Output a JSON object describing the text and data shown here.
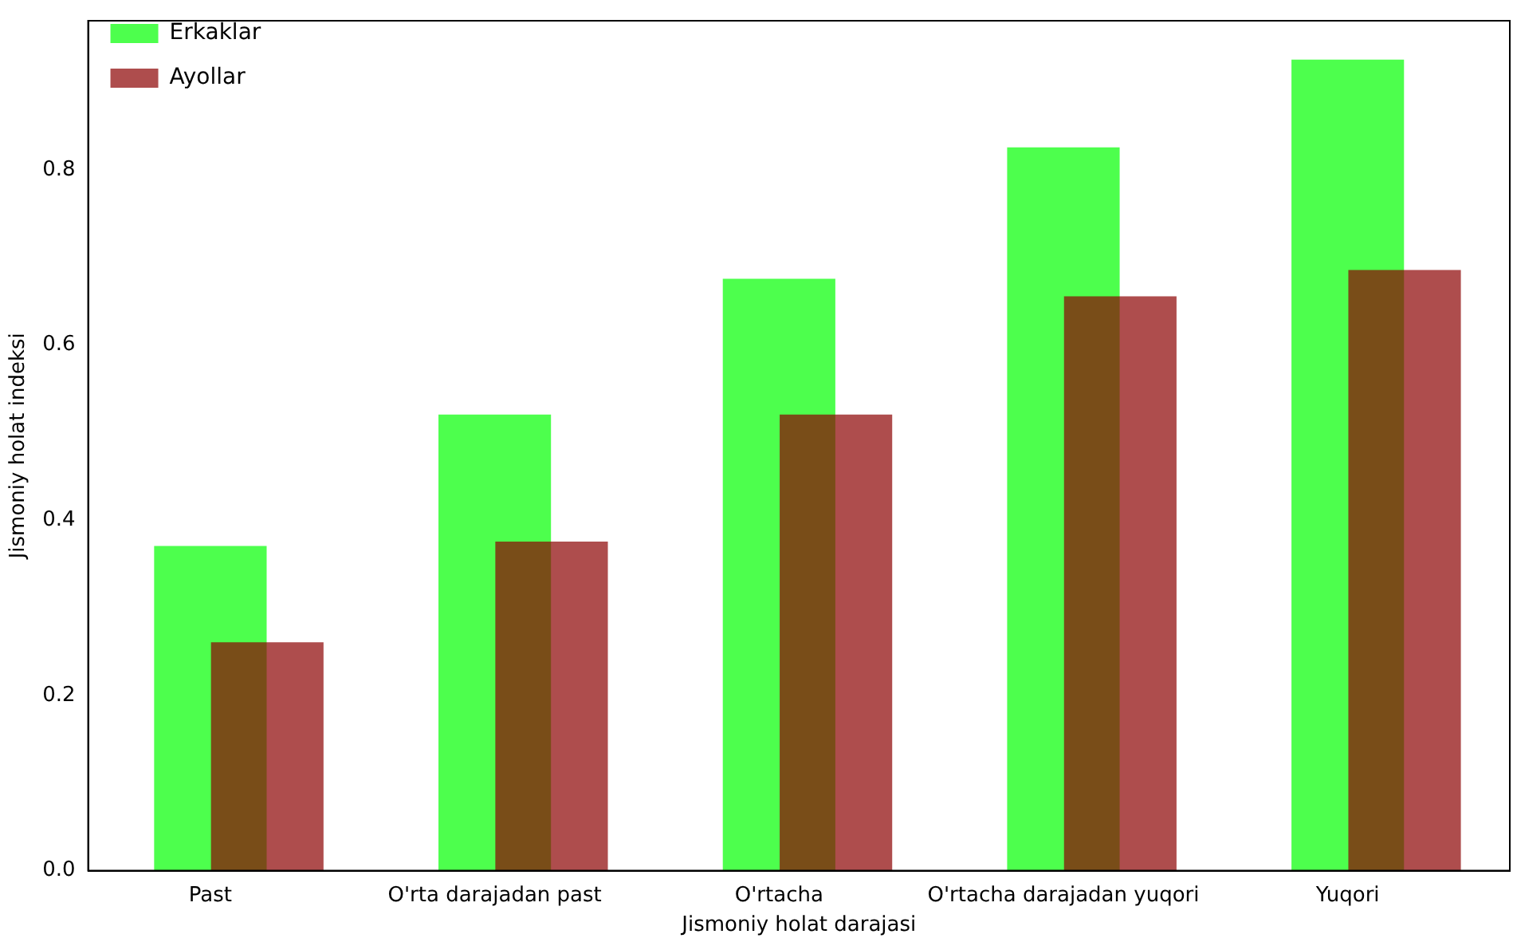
{
  "chart_data": {
    "type": "bar",
    "xlabel": "Jismoniy holat darajasi",
    "ylabel": "Jismoniy holat indeksi",
    "categories": [
      "Past",
      "O'rta darajadan past",
      "O'rtacha",
      "O'rtacha darajadan yuqori",
      "Yuqori"
    ],
    "series": [
      {
        "name": "Erkaklar",
        "color": "#4dff4d",
        "values": [
          0.37,
          0.52,
          0.675,
          0.825,
          0.925
        ]
      },
      {
        "name": "Ayollar",
        "color": "#ae4d4d",
        "values": [
          0.26,
          0.375,
          0.52,
          0.655,
          0.685
        ]
      }
    ],
    "ylim": [
      0,
      0.97
    ],
    "yticks": [
      {
        "value": 0,
        "label": "0.0"
      },
      {
        "value": 0.2,
        "label": "0.2"
      },
      {
        "value": 0.4,
        "label": "0.4"
      },
      {
        "value": 0.6,
        "label": "0.6"
      },
      {
        "value": 0.8,
        "label": "0.8"
      }
    ],
    "legend": "top left",
    "grid": false
  }
}
